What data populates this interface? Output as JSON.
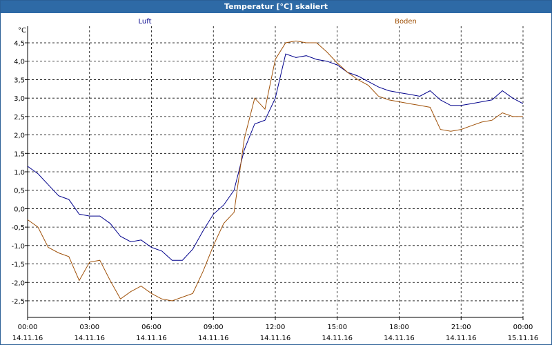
{
  "window": {
    "title": "Temperatur [°C] skaliert"
  },
  "chart_data": {
    "type": "line",
    "title": "Temperatur [°C] skaliert",
    "ylabel": "°C",
    "ylim": [
      -2.95,
      4.95
    ],
    "xlim": [
      0,
      24
    ],
    "grid": true,
    "yticks": [
      {
        "value": 4.5,
        "label": "4,5"
      },
      {
        "value": 4.0,
        "label": "4,0"
      },
      {
        "value": 3.5,
        "label": "3,5"
      },
      {
        "value": 3.0,
        "label": "3,0"
      },
      {
        "value": 2.5,
        "label": "2,5"
      },
      {
        "value": 2.0,
        "label": "2,0"
      },
      {
        "value": 1.5,
        "label": "1,5"
      },
      {
        "value": 1.0,
        "label": "1,0"
      },
      {
        "value": 0.5,
        "label": "0,5"
      },
      {
        "value": 0.0,
        "label": "0,0"
      },
      {
        "value": -0.5,
        "label": "-0,5"
      },
      {
        "value": -1.0,
        "label": "-1,0"
      },
      {
        "value": -1.5,
        "label": "-1,5"
      },
      {
        "value": -2.0,
        "label": "-2,0"
      },
      {
        "value": -2.5,
        "label": "-2,5"
      }
    ],
    "xticks": [
      {
        "value": 0,
        "time": "00:00",
        "date": "14.11.16"
      },
      {
        "value": 3,
        "time": "03:00",
        "date": "14.11.16"
      },
      {
        "value": 6,
        "time": "06:00",
        "date": "14.11.16"
      },
      {
        "value": 9,
        "time": "09:00",
        "date": "14.11.16"
      },
      {
        "value": 12,
        "time": "12:00",
        "date": "14.11.16"
      },
      {
        "value": 15,
        "time": "15:00",
        "date": "14.11.16"
      },
      {
        "value": 18,
        "time": "18:00",
        "date": "14.11.16"
      },
      {
        "value": 21,
        "time": "21:00",
        "date": "14.11.16"
      },
      {
        "value": 24,
        "time": "00:00",
        "date": "15.11.16"
      }
    ],
    "series": [
      {
        "name": "Luft",
        "color": "#00008b",
        "x": [
          0,
          0.5,
          1,
          1.5,
          2,
          2.5,
          3,
          3.5,
          4,
          4.5,
          5,
          5.5,
          6,
          6.5,
          7,
          7.5,
          8,
          8.5,
          9,
          9.5,
          10,
          10.5,
          11,
          11.5,
          12,
          12.5,
          13,
          13.5,
          14,
          14.5,
          15,
          15.5,
          16,
          16.5,
          17,
          17.5,
          18,
          18.5,
          19,
          19.5,
          20,
          20.5,
          21,
          21.5,
          22,
          22.5,
          23,
          23.5,
          24
        ],
        "values": [
          1.15,
          0.95,
          0.65,
          0.35,
          0.25,
          -0.15,
          -0.2,
          -0.2,
          -0.4,
          -0.75,
          -0.9,
          -0.85,
          -1.05,
          -1.15,
          -1.4,
          -1.4,
          -1.1,
          -0.6,
          -0.15,
          0.1,
          0.5,
          1.6,
          2.3,
          2.4,
          3.0,
          4.2,
          4.1,
          4.15,
          4.05,
          4.0,
          3.9,
          3.7,
          3.6,
          3.45,
          3.3,
          3.2,
          3.15,
          3.1,
          3.05,
          3.2,
          2.95,
          2.8,
          2.8,
          2.85,
          2.9,
          2.95,
          3.2,
          3.0,
          2.85
        ]
      },
      {
        "name": "Boden",
        "color": "#a0520a",
        "x": [
          0,
          0.5,
          1,
          1.5,
          2,
          2.5,
          3,
          3.5,
          4,
          4.5,
          5,
          5.5,
          6,
          6.5,
          7,
          7.5,
          8,
          8.5,
          9,
          9.5,
          10,
          10.5,
          11,
          11.5,
          12,
          12.5,
          13,
          13.5,
          14,
          14.5,
          15,
          15.5,
          16,
          16.5,
          17,
          17.5,
          18,
          18.5,
          19,
          19.5,
          20,
          20.5,
          21,
          21.5,
          22,
          22.5,
          23,
          23.5,
          24
        ],
        "values": [
          -0.3,
          -0.5,
          -1.05,
          -1.2,
          -1.3,
          -1.95,
          -1.45,
          -1.4,
          -1.95,
          -2.45,
          -2.25,
          -2.1,
          -2.3,
          -2.45,
          -2.5,
          -2.4,
          -2.3,
          -1.7,
          -1.0,
          -0.4,
          -0.1,
          1.9,
          3.0,
          2.7,
          4.05,
          4.5,
          4.55,
          4.5,
          4.5,
          4.25,
          3.95,
          3.7,
          3.5,
          3.35,
          3.05,
          2.95,
          2.9,
          2.85,
          2.8,
          2.75,
          2.15,
          2.1,
          2.15,
          2.25,
          2.35,
          2.4,
          2.6,
          2.5,
          2.5
        ]
      }
    ]
  }
}
